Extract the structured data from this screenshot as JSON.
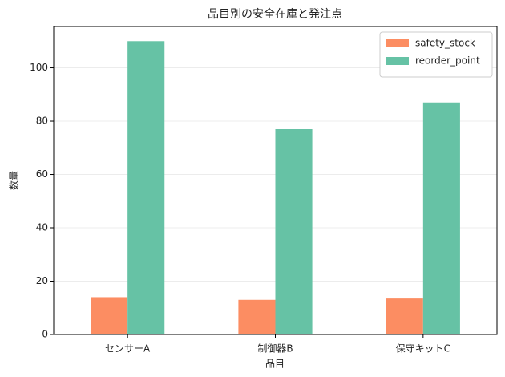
{
  "chart_data": {
    "type": "bar",
    "title": "品目別の安全在庫と発注点",
    "x_label": "品目",
    "y_label": "数量",
    "categories": [
      "センサーA",
      "制御器B",
      "保守キットC"
    ],
    "series": [
      {
        "name": "safety_stock",
        "color": "#fc8d62",
        "values": [
          14,
          13,
          13.5
        ]
      },
      {
        "name": "reorder_point",
        "color": "#66c2a5",
        "values": [
          110,
          77,
          87
        ]
      }
    ],
    "ylim": [
      0,
      115.5
    ],
    "yticks": [
      0,
      20,
      40,
      60,
      80,
      100
    ],
    "grid": true,
    "legend": "upper right"
  }
}
